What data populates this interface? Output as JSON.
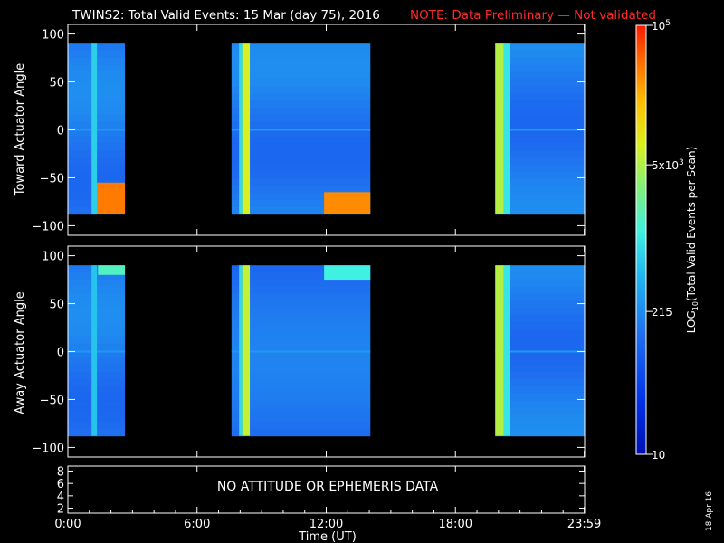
{
  "header": {
    "title": "TWINS2: Total Valid Events: 15 Mar (day  75), 2016",
    "note": "NOTE: Data Preliminary — Not validated"
  },
  "chart_data": [
    {
      "type": "heatmap",
      "panel": "toward",
      "ylabel": "Toward Actuator Angle",
      "ylim": [
        -110,
        110
      ],
      "y_ticks": [
        100,
        50,
        0,
        -50,
        -100
      ],
      "xlim_hours": [
        0,
        24
      ],
      "data_y_range": [
        -88,
        90
      ],
      "data_segments_hours": [
        [
          0.0,
          2.65
        ],
        [
          7.6,
          14.05
        ],
        [
          19.85,
          24.0
        ]
      ],
      "level_stripes": [
        {
          "start": 1.1,
          "end": 1.35,
          "level": 0.46
        },
        {
          "start": 7.95,
          "end": 8.1,
          "level": 0.48
        },
        {
          "start": 8.1,
          "end": 8.45,
          "level": 0.72
        },
        {
          "start": 19.85,
          "end": 20.25,
          "level": 0.68
        },
        {
          "start": 20.25,
          "end": 20.55,
          "level": 0.5
        }
      ],
      "hot_regions": [
        {
          "start": 1.2,
          "end": 2.65,
          "y_from": -88,
          "y_to": -55,
          "level": 0.9
        },
        {
          "start": 11.9,
          "end": 14.05,
          "y_from": -88,
          "y_to": -65,
          "level": 0.88
        }
      ]
    },
    {
      "type": "heatmap",
      "panel": "away",
      "ylabel": "Away Actuator Angle",
      "ylim": [
        -110,
        110
      ],
      "y_ticks": [
        100,
        50,
        0,
        -50,
        -100
      ],
      "xlim_hours": [
        0,
        24
      ],
      "data_y_range": [
        -88,
        90
      ],
      "data_segments_hours": [
        [
          0.0,
          2.65
        ],
        [
          7.6,
          14.05
        ],
        [
          19.85,
          24.0
        ]
      ],
      "level_stripes": [
        {
          "start": 1.1,
          "end": 1.35,
          "level": 0.44
        },
        {
          "start": 7.95,
          "end": 8.1,
          "level": 0.48
        },
        {
          "start": 8.1,
          "end": 8.45,
          "level": 0.7
        },
        {
          "start": 19.85,
          "end": 20.25,
          "level": 0.68
        },
        {
          "start": 20.25,
          "end": 20.55,
          "level": 0.5
        }
      ],
      "hot_regions": [
        {
          "start": 1.4,
          "end": 2.65,
          "y_from": 80,
          "y_to": 90,
          "level": 0.55
        },
        {
          "start": 11.9,
          "end": 14.05,
          "y_from": 75,
          "y_to": 90,
          "level": 0.52
        }
      ]
    },
    {
      "type": "line",
      "panel": "attitude",
      "y_ticks": [
        8,
        6,
        4,
        2
      ],
      "ylim": [
        1.2,
        8.8
      ],
      "message": "NO ATTITUDE OR EPHEMERIS DATA"
    }
  ],
  "x_axis": {
    "label": "Time (UT)",
    "ticks": [
      {
        "hour": 0,
        "label": "0:00"
      },
      {
        "hour": 6,
        "label": "6:00"
      },
      {
        "hour": 12,
        "label": "12:00"
      },
      {
        "hour": 18,
        "label": "18:00"
      },
      {
        "hour": 23.983,
        "label": "23:59"
      }
    ]
  },
  "colorbar": {
    "label": "LOG",
    "label_sub": "10",
    "label_rest": "(Total Valid Events per Scan)",
    "ticks": [
      {
        "log": 5,
        "base": "10",
        "exp": "5"
      },
      {
        "log": 3.699,
        "base": "5x10",
        "exp": "3"
      },
      {
        "log": 2.332,
        "base": "215",
        "exp": ""
      },
      {
        "log": 1,
        "base": "10",
        "exp": ""
      }
    ],
    "log_range": [
      1,
      5
    ]
  },
  "footer": {
    "date_stamp": "18 Apr 16"
  }
}
